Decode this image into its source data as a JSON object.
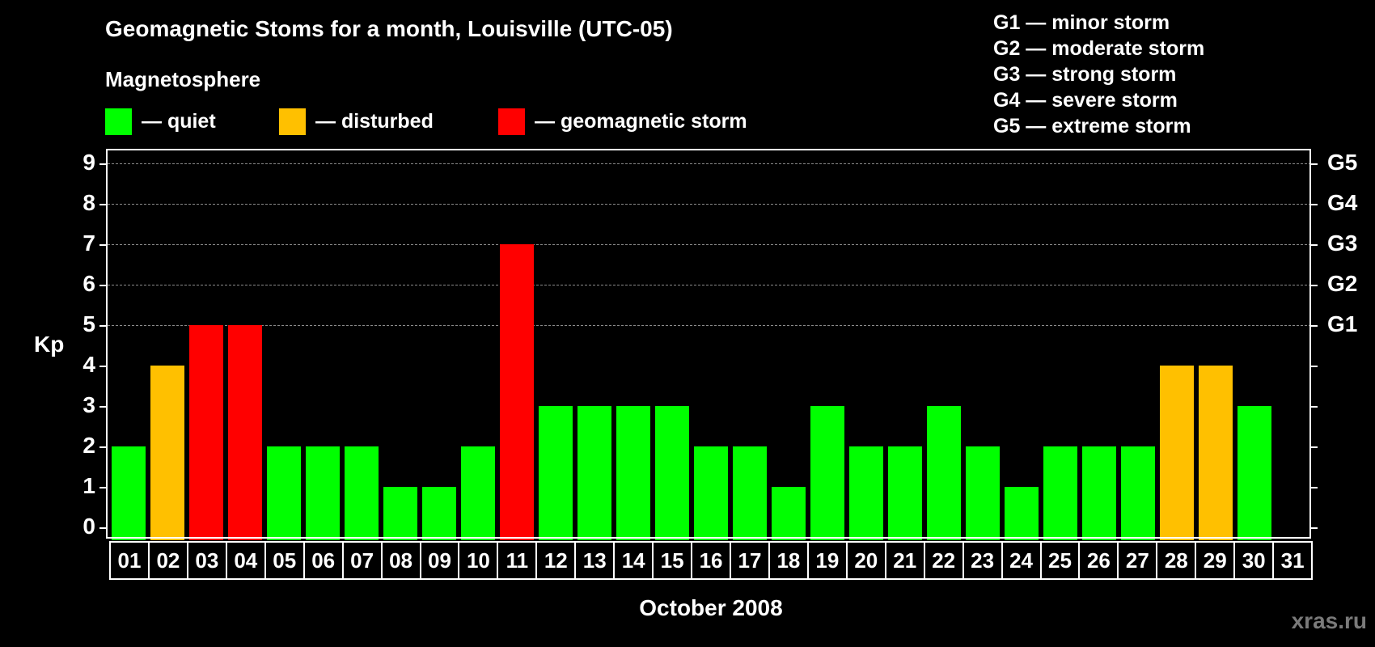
{
  "title": "Geomagnetic Stoms for a month, Louisville (UTC-05)",
  "legend": {
    "heading": "Magnetosphere",
    "items": [
      {
        "label": "— quiet",
        "color": "#00ff00"
      },
      {
        "label": "— disturbed",
        "color": "#ffc000"
      },
      {
        "label": "— geomagnetic storm",
        "color": "#ff0000"
      }
    ]
  },
  "g_legend": [
    "G1 — minor storm",
    "G2 — moderate storm",
    "G3 — strong storm",
    "G4 — severe storm",
    "G5 — extreme storm"
  ],
  "watermark": "xras.ru",
  "chart_data": {
    "type": "bar",
    "title": "Geomagnetic Stoms for a month, Louisville (UTC-05)",
    "xlabel": "October 2008",
    "ylabel": "Kp",
    "ylim": [
      0,
      9
    ],
    "yticks": [
      0,
      1,
      2,
      3,
      4,
      5,
      6,
      7,
      8,
      9
    ],
    "right_axis_labels": {
      "5": "G1",
      "6": "G2",
      "7": "G3",
      "8": "G4",
      "9": "G5"
    },
    "grid": "dashed horizontal at 5-9",
    "categories": [
      "01",
      "02",
      "03",
      "04",
      "05",
      "06",
      "07",
      "08",
      "09",
      "10",
      "11",
      "12",
      "13",
      "14",
      "15",
      "16",
      "17",
      "18",
      "19",
      "20",
      "21",
      "22",
      "23",
      "24",
      "25",
      "26",
      "27",
      "28",
      "29",
      "30",
      "31"
    ],
    "values": [
      2,
      4,
      5,
      5,
      2,
      2,
      2,
      1,
      1,
      2,
      7,
      3,
      3,
      3,
      3,
      2,
      2,
      1,
      3,
      2,
      2,
      3,
      2,
      1,
      2,
      2,
      2,
      4,
      4,
      3,
      null
    ],
    "status": [
      "quiet",
      "disturbed",
      "storm",
      "storm",
      "quiet",
      "quiet",
      "quiet",
      "quiet",
      "quiet",
      "quiet",
      "storm",
      "quiet",
      "quiet",
      "quiet",
      "quiet",
      "quiet",
      "quiet",
      "quiet",
      "quiet",
      "quiet",
      "quiet",
      "quiet",
      "quiet",
      "quiet",
      "quiet",
      "quiet",
      "quiet",
      "disturbed",
      "disturbed",
      "quiet",
      null
    ],
    "colors": {
      "quiet": "#00ff00",
      "disturbed": "#ffc000",
      "storm": "#ff0000"
    }
  }
}
